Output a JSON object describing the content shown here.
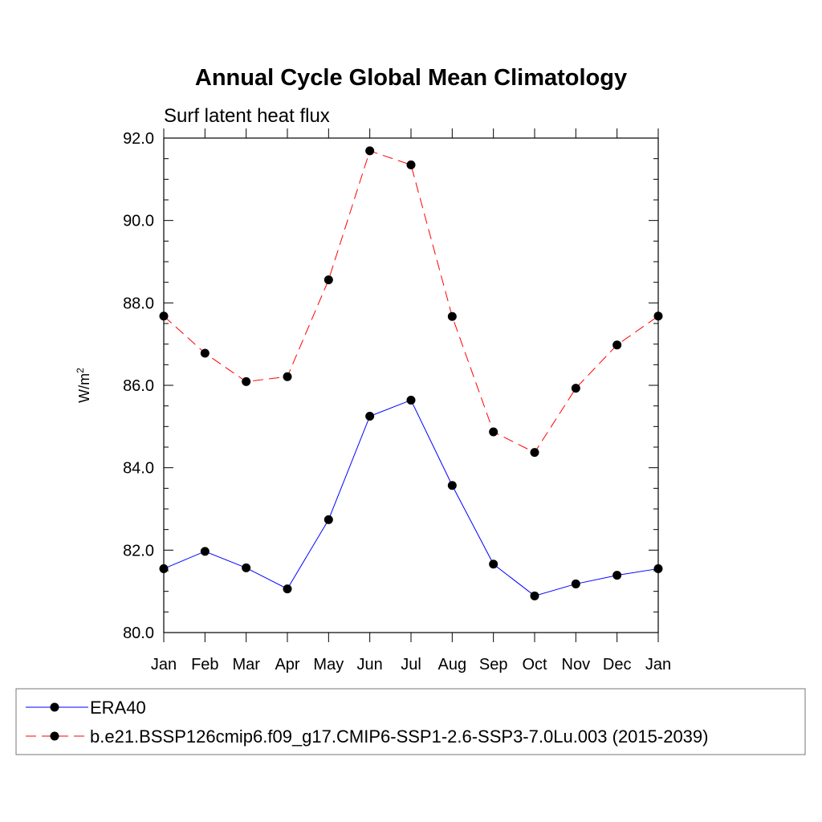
{
  "chart_data": {
    "type": "line",
    "title": "Annual Cycle Global Mean Climatology",
    "subtitle": "Surf latent heat flux",
    "ylabel_base": "W/m",
    "ylabel_sup": "2",
    "xlabel": "",
    "categories": [
      "Jan",
      "Feb",
      "Mar",
      "Apr",
      "May",
      "Jun",
      "Jul",
      "Aug",
      "Sep",
      "Oct",
      "Nov",
      "Dec",
      "Jan"
    ],
    "ylim": [
      80.0,
      92.0
    ],
    "yticks": [
      "80.0",
      "82.0",
      "84.0",
      "86.0",
      "88.0",
      "90.0",
      "92.0"
    ],
    "series": [
      {
        "name": "ERA40",
        "color": "#0000ff",
        "dash": "solid",
        "marker": "filled-circle",
        "values": [
          81.55,
          81.97,
          81.57,
          81.06,
          82.74,
          85.25,
          85.64,
          83.57,
          81.66,
          80.89,
          81.18,
          81.39,
          81.55
        ]
      },
      {
        "name": "b.e21.BSSP126cmip6.f09_g17.CMIP6-SSP1-2.6-SSP3-7.0Lu.003 (2015-2039)",
        "color": "#ff0000",
        "dash": "dashed",
        "marker": "filled-circle",
        "values": [
          87.68,
          86.78,
          86.09,
          86.21,
          88.56,
          91.69,
          91.35,
          87.67,
          84.87,
          84.37,
          85.93,
          86.98,
          87.68
        ]
      }
    ],
    "grid": false,
    "legend_position": "bottom"
  }
}
